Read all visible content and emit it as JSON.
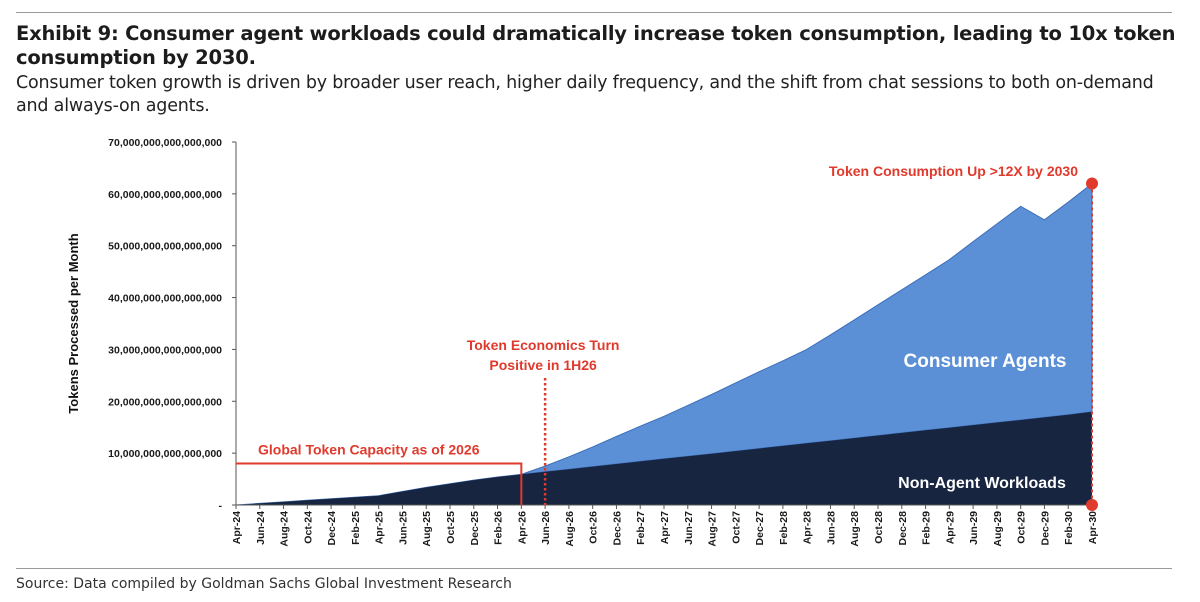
{
  "header": {
    "title": "Exhibit 9: Consumer agent workloads could dramatically increase token consumption, leading to 10x token consumption by 2030.",
    "subtitle": "Consumer token growth is driven by broader user reach, higher daily frequency, and the shift from chat sessions to both on-demand and always-on agents."
  },
  "footer": {
    "source": "Source: Data compiled by Goldman Sachs Global Investment Research"
  },
  "colors": {
    "non_agent": "#172541",
    "consumer_agents": "#5b8fd6",
    "annotation": "#e03a2c",
    "axis": "#1a1a1a"
  },
  "chart_data": {
    "type": "area",
    "stacked": true,
    "title": "",
    "xlabel": "",
    "ylabel": "Tokens Processed per Month",
    "ylim": [
      0,
      70000000000000000
    ],
    "yticks": [
      0,
      10000000000000000,
      20000000000000000,
      30000000000000000,
      40000000000000000,
      50000000000000000,
      60000000000000000,
      70000000000000000
    ],
    "ytick_labels": [
      "-",
      "10,000,000,000,000,000",
      "20,000,000,000,000,000",
      "30,000,000,000,000,000",
      "40,000,000,000,000,000",
      "50,000,000,000,000,000",
      "60,000,000,000,000,000",
      "70,000,000,000,000,000"
    ],
    "categories": [
      "Apr-24",
      "Jun-24",
      "Aug-24",
      "Oct-24",
      "Dec-24",
      "Feb-25",
      "Apr-25",
      "Jun-25",
      "Aug-25",
      "Oct-25",
      "Dec-25",
      "Feb-26",
      "Apr-26",
      "Jun-26",
      "Aug-26",
      "Oct-26",
      "Dec-26",
      "Feb-27",
      "Apr-27",
      "Jun-27",
      "Aug-27",
      "Oct-27",
      "Dec-27",
      "Feb-28",
      "Apr-28",
      "Jun-28",
      "Aug-28",
      "Oct-28",
      "Dec-28",
      "Feb-29",
      "Apr-29",
      "Jun-29",
      "Aug-29",
      "Oct-29",
      "Dec-29",
      "Feb-30",
      "Apr-30"
    ],
    "grid": false,
    "legend": "none",
    "series": [
      {
        "name": "Non-Agent Workloads",
        "values": [
          0,
          300000000000000,
          600000000000000,
          900000000000000,
          1200000000000000,
          1500000000000000,
          1800000000000000,
          2600000000000000,
          3400000000000000,
          4100000000000000,
          4800000000000000,
          5400000000000000,
          5900000000000000,
          6400000000000000,
          6900000000000000,
          7400000000000000,
          7900000000000000,
          8400000000000000,
          8900000000000000,
          9400000000000000,
          9900000000000000,
          10400000000000000,
          10900000000000000,
          11400000000000000,
          11900000000000000,
          12400000000000000,
          12900000000000000,
          13400000000000000,
          13900000000000000,
          14400000000000000,
          14900000000000000,
          15400000000000000,
          15900000000000000,
          16400000000000000,
          16900000000000000,
          17400000000000000,
          18000000000000000
        ]
      },
      {
        "name": "Consumer Agents",
        "values": [
          0,
          0,
          0,
          0,
          0,
          0,
          0,
          0,
          0,
          0,
          0,
          0,
          0,
          1100000000000000,
          2400000000000000,
          3800000000000000,
          5300000000000000,
          6800000000000000,
          8200000000000000,
          9800000000000000,
          11400000000000000,
          13100000000000000,
          14800000000000000,
          16400000000000000,
          18100000000000000,
          20400000000000000,
          22800000000000000,
          25200000000000000,
          27600000000000000,
          30000000000000000,
          32400000000000000,
          35400000000000000,
          38300000000000000,
          41200000000000000,
          38100000000000000,
          41000000000000000,
          44000000000000000
        ]
      }
    ],
    "annotations": {
      "capacity_label": "Global Token Capacity as of 2026",
      "capacity_value": 8000000000000000,
      "capacity_until": "Apr-26",
      "economics_label_line1": "Token Economics Turn",
      "economics_label_line2": "Positive in 1H26",
      "economics_at": "Jun-26",
      "peak_label": "Token Consumption Up >12X by 2030",
      "peak_at": "Apr-30",
      "consumer_agents_label": "Consumer Agents",
      "non_agent_label": "Non-Agent Workloads"
    }
  }
}
